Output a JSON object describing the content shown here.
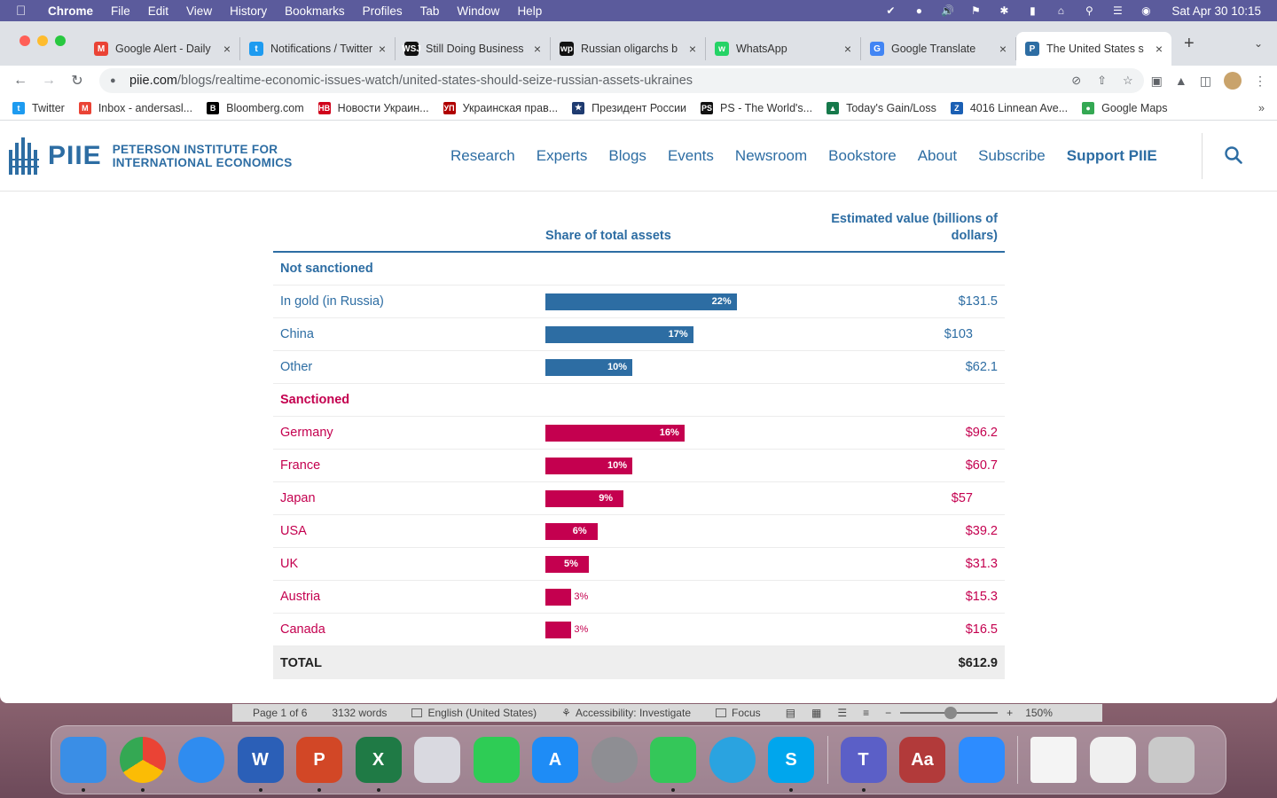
{
  "menubar": {
    "app": "Chrome",
    "items": [
      "File",
      "Edit",
      "View",
      "History",
      "Bookmarks",
      "Profiles",
      "Tab",
      "Window",
      "Help"
    ],
    "clock": "Sat Apr 30  10:15"
  },
  "tabs": [
    {
      "title": "Google Alert - Daily",
      "icon": "gmail-icon",
      "color": "#ea4335",
      "glyph": "M"
    },
    {
      "title": "Notifications / Twitter",
      "icon": "twitter-icon",
      "color": "#1d9bf0",
      "glyph": "t"
    },
    {
      "title": "Still Doing Business",
      "icon": "wsj-icon",
      "color": "#111111",
      "glyph": "WSJ"
    },
    {
      "title": "Russian oligarchs b",
      "icon": "wp-icon",
      "color": "#111111",
      "glyph": "wp"
    },
    {
      "title": "WhatsApp",
      "icon": "whatsapp-icon",
      "color": "#25d366",
      "glyph": "w"
    },
    {
      "title": "Google Translate",
      "icon": "translate-icon",
      "color": "#4285f4",
      "glyph": "G"
    },
    {
      "title": "The United States s",
      "icon": "piie-icon",
      "color": "#2d6da3",
      "glyph": "P",
      "active": true
    }
  ],
  "url": {
    "domain": "piie.com",
    "path": "/blogs/realtime-economic-issues-watch/united-states-should-seize-russian-assets-ukraines"
  },
  "bookmarks": [
    {
      "label": "Twitter",
      "color": "#1d9bf0",
      "glyph": "t"
    },
    {
      "label": "Inbox - andersasl...",
      "color": "#ea4335",
      "glyph": "M"
    },
    {
      "label": "Bloomberg.com",
      "color": "#000000",
      "glyph": "B"
    },
    {
      "label": "Новости Украин...",
      "color": "#d0021b",
      "glyph": "HB"
    },
    {
      "label": "Украинская прав...",
      "color": "#b00000",
      "glyph": "УП"
    },
    {
      "label": "Президент России",
      "color": "#1f3b70",
      "glyph": "★"
    },
    {
      "label": "PS - The World's...",
      "color": "#111111",
      "glyph": "PS"
    },
    {
      "label": "Today's Gain/Loss",
      "color": "#16794b",
      "glyph": "▲"
    },
    {
      "label": "4016 Linnean Ave...",
      "color": "#1a5fb4",
      "glyph": "Z"
    },
    {
      "label": "Google Maps",
      "color": "#34a853",
      "glyph": "●"
    }
  ],
  "site": {
    "logo_word": "PIIE",
    "logo_sub_1": "PETERSON INSTITUTE FOR",
    "logo_sub_2": "INTERNATIONAL ECONOMICS",
    "nav": [
      "Research",
      "Experts",
      "Blogs",
      "Events",
      "Newsroom",
      "Bookstore",
      "About",
      "Subscribe"
    ],
    "support": "Support PIIE"
  },
  "chart_data": {
    "type": "bar",
    "columns": {
      "share": "Share of total assets",
      "value": "Estimated value (billions of dollars)"
    },
    "groups": [
      {
        "name": "Not sanctioned",
        "color": "#2d6da3",
        "rows": [
          {
            "label": "In gold (in Russia)",
            "share": 22,
            "share_label": "22%",
            "value": 131.5,
            "value_label": "$131.5"
          },
          {
            "label": "China",
            "share": 17,
            "share_label": "17%",
            "value": 103,
            "value_label": "$103"
          },
          {
            "label": "Other",
            "share": 10,
            "share_label": "10%",
            "value": 62.1,
            "value_label": "$62.1"
          }
        ]
      },
      {
        "name": "Sanctioned",
        "color": "#c4004f",
        "rows": [
          {
            "label": "Germany",
            "share": 16,
            "share_label": "16%",
            "value": 96.2,
            "value_label": "$96.2"
          },
          {
            "label": "France",
            "share": 10,
            "share_label": "10%",
            "value": 60.7,
            "value_label": "$60.7"
          },
          {
            "label": "Japan",
            "share": 9,
            "share_label": "9%",
            "value": 57,
            "value_label": "$57"
          },
          {
            "label": "USA",
            "share": 6,
            "share_label": "6%",
            "value": 39.2,
            "value_label": "$39.2"
          },
          {
            "label": "UK",
            "share": 5,
            "share_label": "5%",
            "value": 31.3,
            "value_label": "$31.3"
          },
          {
            "label": "Austria",
            "share": 3,
            "share_label": "3%",
            "value": 15.3,
            "value_label": "$15.3"
          },
          {
            "label": "Canada",
            "share": 3,
            "share_label": "3%",
            "value": 16.5,
            "value_label": "$16.5"
          }
        ]
      }
    ],
    "total": {
      "label": "TOTAL",
      "value": 612.9,
      "value_label": "$612.9"
    }
  },
  "wordbar": {
    "page": "Page 1 of 6",
    "words": "3132 words",
    "language": "English (United States)",
    "accessibility": "Accessibility: Investigate",
    "focus": "Focus",
    "zoom": "150%"
  },
  "dock": [
    {
      "name": "finder",
      "color": "#3a8ee6",
      "glyph": ""
    },
    {
      "name": "chrome",
      "color": "#e8e8e8",
      "glyph": ""
    },
    {
      "name": "safari",
      "color": "#2f8cf0",
      "glyph": ""
    },
    {
      "name": "word",
      "color": "#2b5fb7",
      "glyph": "W"
    },
    {
      "name": "powerpoint",
      "color": "#d24726",
      "glyph": "P"
    },
    {
      "name": "excel",
      "color": "#1f7a45",
      "glyph": "X"
    },
    {
      "name": "launchpad",
      "color": "#d9d9e0",
      "glyph": ""
    },
    {
      "name": "facetime",
      "color": "#2ecc55",
      "glyph": ""
    },
    {
      "name": "app-store",
      "color": "#1e8cf6",
      "glyph": "A"
    },
    {
      "name": "system-preferences",
      "color": "#8e8e93",
      "glyph": ""
    },
    {
      "name": "messages",
      "color": "#34c759",
      "glyph": ""
    },
    {
      "name": "telegram",
      "color": "#2aa3e0",
      "glyph": ""
    },
    {
      "name": "skype",
      "color": "#00a6ed",
      "glyph": "S"
    },
    {
      "name": "teams",
      "color": "#5b5fc7",
      "glyph": "T"
    },
    {
      "name": "dictionary",
      "color": "#b23a3a",
      "glyph": "Aa"
    },
    {
      "name": "zoom",
      "color": "#2d8cff",
      "glyph": ""
    },
    {
      "name": "chrome-doc",
      "color": "#f4f4f4",
      "glyph": ""
    },
    {
      "name": "document-preview",
      "color": "#f0f0f0",
      "glyph": ""
    },
    {
      "name": "trash",
      "color": "#c9c9c9",
      "glyph": ""
    }
  ]
}
